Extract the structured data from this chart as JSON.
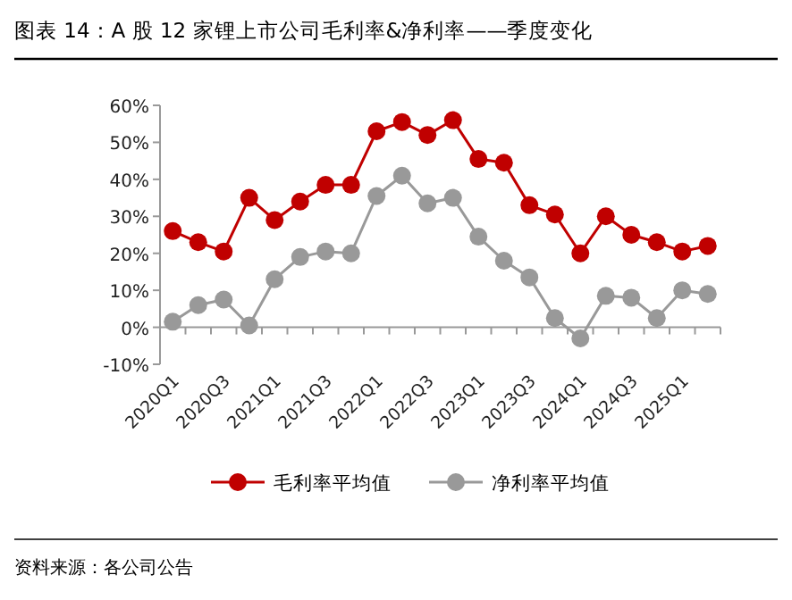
{
  "chart_data": {
    "type": "line",
    "title": "图表 14：A 股 12 家锂上市公司毛利率&净利率——季度变化",
    "annotations": [
      "资料来源：各公司公告"
    ],
    "categories": [
      "2020Q1",
      null,
      "2020Q3",
      null,
      "2021Q1",
      null,
      "2021Q3",
      null,
      "2022Q1",
      null,
      "2022Q3",
      null,
      "2023Q1",
      null,
      "2023Q3",
      null,
      "2024Q1",
      null,
      "2024Q3",
      null,
      "2025Q1",
      null
    ],
    "series": [
      {
        "name": "毛利率平均值",
        "color": "#c00000",
        "values": [
          26,
          23,
          20.5,
          35,
          29,
          34,
          38.5,
          38.5,
          53,
          55.5,
          52,
          56,
          45.5,
          44.5,
          33,
          30.5,
          20,
          30,
          25,
          23,
          20.5,
          22
        ]
      },
      {
        "name": "净利率平均值",
        "color": "#999999",
        "values": [
          1.5,
          6,
          7.5,
          0.5,
          13,
          19,
          20.5,
          20,
          35.5,
          41,
          33.5,
          35,
          24.5,
          18,
          13.5,
          2.5,
          -3,
          8.5,
          8,
          2.5,
          10,
          9
        ]
      }
    ],
    "ylim": [
      -10,
      60
    ],
    "yticks": [
      {
        "value": -10,
        "label": "-10%"
      },
      {
        "value": 0,
        "label": "0%"
      },
      {
        "value": 10,
        "label": "10%"
      },
      {
        "value": 20,
        "label": "20%"
      },
      {
        "value": 30,
        "label": "30%"
      },
      {
        "value": 40,
        "label": "40%"
      },
      {
        "value": 50,
        "label": "50%"
      },
      {
        "value": 60,
        "label": "60%"
      }
    ],
    "legend": "bottom",
    "marker": "circle",
    "line_style": "solid"
  }
}
